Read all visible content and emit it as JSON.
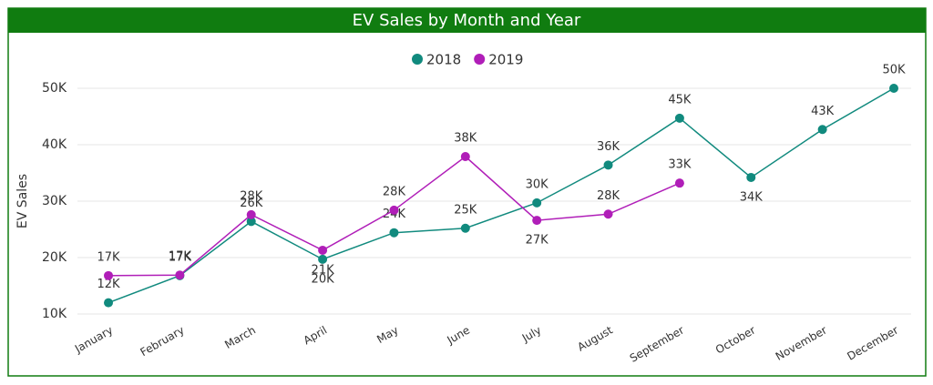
{
  "chart_data": {
    "type": "line",
    "title": "EV Sales by Month and Year",
    "categories": [
      "January",
      "February",
      "March",
      "April",
      "May",
      "June",
      "July",
      "August",
      "September",
      "October",
      "November",
      "December"
    ],
    "series": [
      {
        "name": "2018",
        "color": "#118a7e",
        "values": [
          12,
          16.8,
          26.4,
          19.7,
          24.4,
          25.2,
          29.7,
          36.4,
          44.7,
          34.2,
          42.7,
          50
        ],
        "value_labels": [
          "12K",
          "17K",
          "26K",
          "20K",
          "24K",
          "25K",
          "30K",
          "36K",
          "45K",
          "34K",
          "43K",
          "50K"
        ]
      },
      {
        "name": "2019",
        "color": "#b01eb8",
        "values": [
          16.8,
          16.9,
          27.6,
          21.3,
          28.4,
          37.9,
          26.6,
          27.7,
          33.2,
          null,
          null,
          null
        ],
        "value_labels": [
          "17K",
          "17K",
          "28K",
          "21K",
          "28K",
          "38K",
          "27K",
          "28K",
          "33K",
          null,
          null,
          null
        ]
      }
    ],
    "ylabel": "EV Sales",
    "ylim": [
      10,
      50
    ],
    "yticks": [
      {
        "value": 10,
        "label": "10K"
      },
      {
        "value": 20,
        "label": "20K"
      },
      {
        "value": 30,
        "label": "30K"
      },
      {
        "value": 40,
        "label": "40K"
      },
      {
        "value": 50,
        "label": "50K"
      }
    ],
    "grid": true,
    "legend": "top"
  }
}
